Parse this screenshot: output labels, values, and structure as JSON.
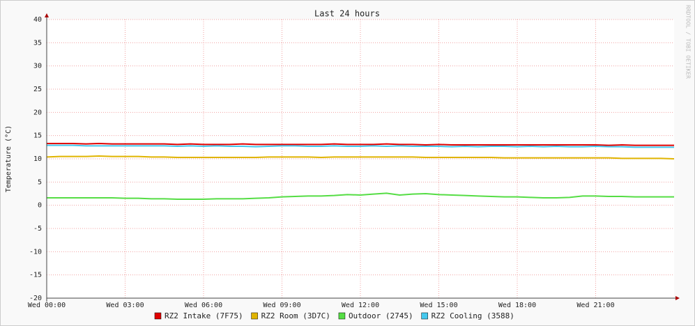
{
  "chart_data": {
    "type": "line",
    "title": "Last 24 hours",
    "y_label": "Temperature (°C)",
    "watermark": "RRDTOOL / TOBI OETIKER",
    "x": [
      0,
      0.5,
      1,
      1.5,
      2,
      2.5,
      3,
      3.5,
      4,
      4.5,
      5,
      5.5,
      6,
      6.5,
      7,
      7.5,
      8,
      8.5,
      9,
      9.5,
      10,
      10.5,
      11,
      11.5,
      12,
      12.5,
      13,
      13.5,
      14,
      14.5,
      15,
      15.5,
      16,
      16.5,
      17,
      17.5,
      18,
      18.5,
      19,
      19.5,
      20,
      20.5,
      21,
      21.5,
      22,
      22.5,
      23,
      23.5,
      24
    ],
    "xlim": [
      0,
      24
    ],
    "xticks": [
      {
        "value": 0,
        "label": "Wed 00:00"
      },
      {
        "value": 3,
        "label": "Wed 03:00"
      },
      {
        "value": 6,
        "label": "Wed 06:00"
      },
      {
        "value": 9,
        "label": "Wed 09:00"
      },
      {
        "value": 12,
        "label": "Wed 12:00"
      },
      {
        "value": 15,
        "label": "Wed 15:00"
      },
      {
        "value": 18,
        "label": "Wed 18:00"
      },
      {
        "value": 21,
        "label": "Wed 21:00"
      }
    ],
    "ylim": [
      -20,
      40
    ],
    "yticks": [
      -20,
      -15,
      -10,
      -5,
      0,
      5,
      10,
      15,
      20,
      25,
      30,
      35,
      40
    ],
    "grid": true,
    "legend": "bottom",
    "series": [
      {
        "name": "RZ2 Intake (7F75)",
        "color": "#e00000",
        "values": [
          13.3,
          13.3,
          13.3,
          13.2,
          13.3,
          13.2,
          13.2,
          13.2,
          13.2,
          13.2,
          13.1,
          13.2,
          13.1,
          13.1,
          13.1,
          13.2,
          13.1,
          13.1,
          13.1,
          13.1,
          13.1,
          13.1,
          13.2,
          13.1,
          13.1,
          13.1,
          13.2,
          13.1,
          13.1,
          13.0,
          13.1,
          13.0,
          13.0,
          13.0,
          13.0,
          13.0,
          13.0,
          13.0,
          13.0,
          13.0,
          13.0,
          13.0,
          13.0,
          12.9,
          13.0,
          12.9,
          12.9,
          12.9,
          12.9
        ]
      },
      {
        "name": "RZ2 Room (3D7C)",
        "color": "#e0b400",
        "values": [
          10.4,
          10.5,
          10.5,
          10.5,
          10.6,
          10.5,
          10.5,
          10.5,
          10.4,
          10.4,
          10.3,
          10.3,
          10.3,
          10.3,
          10.3,
          10.3,
          10.3,
          10.4,
          10.4,
          10.4,
          10.4,
          10.3,
          10.4,
          10.4,
          10.4,
          10.4,
          10.4,
          10.4,
          10.4,
          10.3,
          10.3,
          10.3,
          10.3,
          10.3,
          10.3,
          10.2,
          10.2,
          10.2,
          10.2,
          10.2,
          10.2,
          10.2,
          10.2,
          10.2,
          10.1,
          10.1,
          10.1,
          10.1,
          10.0
        ]
      },
      {
        "name": "Outdoor (2745)",
        "color": "#55dd44",
        "values": [
          1.6,
          1.6,
          1.6,
          1.6,
          1.6,
          1.6,
          1.5,
          1.5,
          1.4,
          1.4,
          1.3,
          1.3,
          1.3,
          1.4,
          1.4,
          1.4,
          1.5,
          1.6,
          1.8,
          1.9,
          2.0,
          2.0,
          2.1,
          2.3,
          2.2,
          2.4,
          2.6,
          2.2,
          2.4,
          2.5,
          2.3,
          2.2,
          2.1,
          2.0,
          1.9,
          1.8,
          1.8,
          1.7,
          1.6,
          1.6,
          1.7,
          2.0,
          2.0,
          1.9,
          1.9,
          1.8,
          1.8,
          1.8,
          1.8
        ]
      },
      {
        "name": "RZ2 Cooling (3588)",
        "color": "#44c8ee",
        "values": [
          12.9,
          12.9,
          12.9,
          12.8,
          12.8,
          12.8,
          12.8,
          12.8,
          12.8,
          12.8,
          12.7,
          12.8,
          12.7,
          12.8,
          12.7,
          12.7,
          12.6,
          12.7,
          12.8,
          12.8,
          12.7,
          12.7,
          12.8,
          12.7,
          12.7,
          12.8,
          12.7,
          12.8,
          12.7,
          12.7,
          12.7,
          12.6,
          12.7,
          12.6,
          12.7,
          12.7,
          12.6,
          12.7,
          12.6,
          12.7,
          12.6,
          12.6,
          12.7,
          12.6,
          12.6,
          12.5,
          12.5,
          12.5,
          12.5
        ]
      }
    ]
  }
}
